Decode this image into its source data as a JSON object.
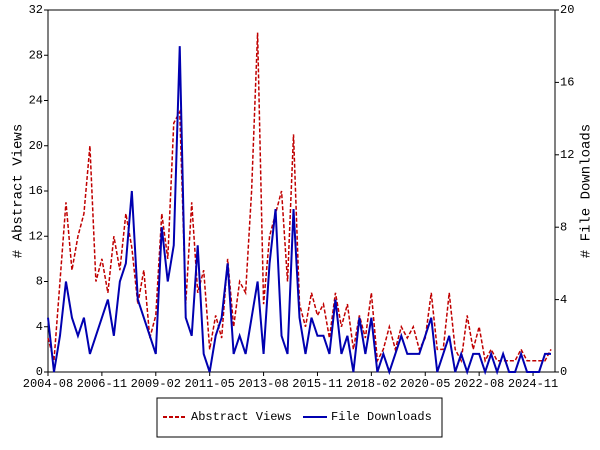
{
  "chart_data": {
    "type": "line",
    "x": [
      "2004-08",
      "2004-11",
      "2005-02",
      "2005-05",
      "2005-08",
      "2005-11",
      "2006-02",
      "2006-05",
      "2006-08",
      "2006-11",
      "2007-02",
      "2007-05",
      "2007-08",
      "2007-11",
      "2008-02",
      "2008-05",
      "2008-08",
      "2008-11",
      "2009-02",
      "2009-05",
      "2009-08",
      "2009-11",
      "2010-02",
      "2010-05",
      "2010-08",
      "2010-11",
      "2011-02",
      "2011-05",
      "2011-08",
      "2011-11",
      "2012-02",
      "2012-05",
      "2012-08",
      "2012-11",
      "2013-02",
      "2013-05",
      "2013-08",
      "2013-11",
      "2014-02",
      "2014-05",
      "2014-08",
      "2014-11",
      "2015-02",
      "2015-05",
      "2015-08",
      "2015-11",
      "2016-02",
      "2016-05",
      "2016-08",
      "2016-11",
      "2017-02",
      "2017-05",
      "2017-08",
      "2017-11",
      "2018-02",
      "2018-05",
      "2018-08",
      "2018-11",
      "2019-02",
      "2019-05",
      "2019-08",
      "2019-11",
      "2020-02",
      "2020-05",
      "2020-08",
      "2020-11",
      "2021-02",
      "2021-05",
      "2021-08",
      "2021-11",
      "2022-02",
      "2022-05",
      "2022-08",
      "2022-11",
      "2023-02",
      "2023-05",
      "2023-08",
      "2023-11",
      "2024-02",
      "2024-05",
      "2024-08",
      "2024-11",
      "2025-02",
      "2025-05",
      "2025-08"
    ],
    "xlim": [
      "2004-08",
      "2025-10"
    ],
    "xticks": [
      "2004-08",
      "2006-11",
      "2009-02",
      "2011-05",
      "2013-08",
      "2015-11",
      "2018-02",
      "2020-05",
      "2022-08",
      "2024-11"
    ],
    "ylabel": "# Abstract Views",
    "y2label": "# File Downloads",
    "ylim": [
      0,
      32
    ],
    "yticks": [
      0,
      4,
      8,
      12,
      16,
      20,
      24,
      28,
      32
    ],
    "y2lim": [
      0,
      20
    ],
    "y2ticks": [
      0,
      4,
      8,
      12,
      16,
      20
    ],
    "series": [
      {
        "name": "Abstract Views",
        "color": "#c00000",
        "dashed": true,
        "values": [
          3,
          1,
          8,
          15,
          9,
          12,
          14,
          20,
          8,
          10,
          7,
          12,
          9,
          14,
          11,
          6,
          9,
          3,
          5,
          14,
          10,
          22,
          23,
          6,
          15,
          7,
          9,
          2,
          5,
          3,
          10,
          4,
          8,
          7,
          16,
          30,
          6,
          12,
          14,
          16,
          8,
          21,
          6,
          4,
          7,
          5,
          6,
          3,
          7,
          4,
          6,
          2,
          5,
          3,
          7,
          1,
          2,
          4,
          2,
          4,
          3,
          4,
          2,
          3,
          7,
          2,
          2,
          7,
          2,
          1,
          5,
          2,
          4,
          1,
          2,
          1,
          1,
          1,
          1,
          2,
          1,
          1,
          1,
          1,
          2
        ]
      },
      {
        "name": "File Downloads",
        "color": "#0000b0",
        "axis": "y2",
        "dashed": false,
        "values": [
          3,
          0,
          2,
          5,
          3,
          2,
          3,
          1,
          2,
          3,
          4,
          2,
          5,
          6,
          10,
          4,
          3,
          2,
          1,
          8,
          5,
          7,
          18,
          3,
          2,
          7,
          1,
          0,
          2,
          3,
          6,
          1,
          2,
          1,
          3,
          5,
          1,
          6,
          9,
          2,
          1,
          9,
          3,
          1,
          3,
          2,
          2,
          1,
          4,
          1,
          2,
          0,
          3,
          1,
          3,
          0,
          1,
          0,
          1,
          2,
          1,
          1,
          1,
          2,
          3,
          0,
          1,
          2,
          0,
          1,
          0,
          1,
          1,
          0,
          1,
          0,
          1,
          0,
          0,
          1,
          0,
          0,
          0,
          1,
          1
        ]
      }
    ]
  }
}
